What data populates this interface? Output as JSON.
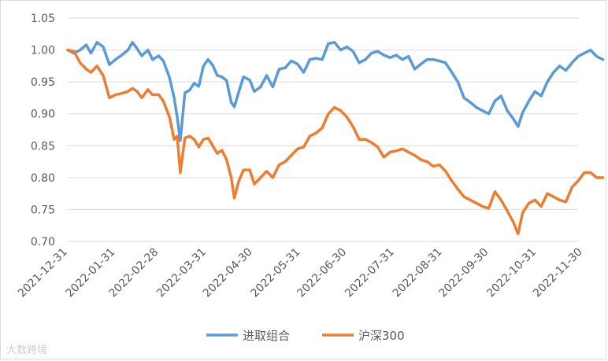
{
  "chart_data": {
    "type": "line",
    "title": "",
    "xlabel": "",
    "ylabel": "",
    "ylim": [
      0.7,
      1.05
    ],
    "yticks": [
      "1.05",
      "1.00",
      "0.95",
      "0.90",
      "0.85",
      "0.80",
      "0.75",
      "0.70"
    ],
    "x_ticks": [
      "2021-12-31",
      "2022-01-31",
      "2022-02-28",
      "2022-03-31",
      "2022-04-30",
      "2022-05-31",
      "2022-06-30",
      "2022-07-31",
      "2022-08-31",
      "2022-09-30",
      "2022-10-31",
      "2022-11-30"
    ],
    "grid": "horizontal",
    "legend_position": "bottom",
    "series": [
      {
        "name": "进取组合",
        "color": "#5b9bd5",
        "points": [
          [
            "2021-12-31",
            1.0
          ],
          [
            "2022-01-04",
            0.995
          ],
          [
            "2022-01-08",
            1.0
          ],
          [
            "2022-01-12",
            1.008
          ],
          [
            "2022-01-15",
            0.995
          ],
          [
            "2022-01-19",
            1.012
          ],
          [
            "2022-01-23",
            1.005
          ],
          [
            "2022-01-27",
            0.977
          ],
          [
            "2022-01-31",
            0.985
          ],
          [
            "2022-02-04",
            0.992
          ],
          [
            "2022-02-08",
            1.0
          ],
          [
            "2022-02-11",
            1.012
          ],
          [
            "2022-02-14",
            1.002
          ],
          [
            "2022-02-17",
            0.991
          ],
          [
            "2022-02-21",
            1.0
          ],
          [
            "2022-02-24",
            0.985
          ],
          [
            "2022-02-28",
            0.991
          ],
          [
            "2022-03-03",
            0.983
          ],
          [
            "2022-03-07",
            0.957
          ],
          [
            "2022-03-10",
            0.925
          ],
          [
            "2022-03-12",
            0.895
          ],
          [
            "2022-03-14",
            0.858
          ],
          [
            "2022-03-17",
            0.933
          ],
          [
            "2022-03-20",
            0.937
          ],
          [
            "2022-03-23",
            0.948
          ],
          [
            "2022-03-26",
            0.943
          ],
          [
            "2022-03-29",
            0.975
          ],
          [
            "2022-04-01",
            0.985
          ],
          [
            "2022-04-04",
            0.976
          ],
          [
            "2022-04-07",
            0.96
          ],
          [
            "2022-04-10",
            0.958
          ],
          [
            "2022-04-13",
            0.952
          ],
          [
            "2022-04-16",
            0.918
          ],
          [
            "2022-04-18",
            0.911
          ],
          [
            "2022-04-21",
            0.935
          ],
          [
            "2022-04-24",
            0.958
          ],
          [
            "2022-04-28",
            0.953
          ],
          [
            "2022-05-01",
            0.935
          ],
          [
            "2022-05-05",
            0.942
          ],
          [
            "2022-05-09",
            0.96
          ],
          [
            "2022-05-13",
            0.942
          ],
          [
            "2022-05-17",
            0.97
          ],
          [
            "2022-05-21",
            0.972
          ],
          [
            "2022-05-25",
            0.983
          ],
          [
            "2022-05-29",
            0.978
          ],
          [
            "2022-06-02",
            0.965
          ],
          [
            "2022-06-06",
            0.985
          ],
          [
            "2022-06-10",
            0.987
          ],
          [
            "2022-06-14",
            0.985
          ],
          [
            "2022-06-18",
            1.01
          ],
          [
            "2022-06-22",
            1.012
          ],
          [
            "2022-06-26",
            1.0
          ],
          [
            "2022-06-30",
            1.005
          ],
          [
            "2022-07-04",
            0.998
          ],
          [
            "2022-07-08",
            0.98
          ],
          [
            "2022-07-12",
            0.985
          ],
          [
            "2022-07-16",
            0.995
          ],
          [
            "2022-07-20",
            0.998
          ],
          [
            "2022-07-24",
            0.992
          ],
          [
            "2022-07-28",
            0.988
          ],
          [
            "2022-08-01",
            0.992
          ],
          [
            "2022-08-05",
            0.985
          ],
          [
            "2022-08-09",
            0.99
          ],
          [
            "2022-08-13",
            0.97
          ],
          [
            "2022-08-17",
            0.978
          ],
          [
            "2022-08-21",
            0.985
          ],
          [
            "2022-08-25",
            0.985
          ],
          [
            "2022-08-29",
            0.983
          ],
          [
            "2022-09-02",
            0.98
          ],
          [
            "2022-09-06",
            0.965
          ],
          [
            "2022-09-10",
            0.95
          ],
          [
            "2022-09-14",
            0.925
          ],
          [
            "2022-09-18",
            0.918
          ],
          [
            "2022-09-22",
            0.91
          ],
          [
            "2022-09-26",
            0.905
          ],
          [
            "2022-09-30",
            0.9
          ],
          [
            "2022-10-04",
            0.92
          ],
          [
            "2022-10-08",
            0.928
          ],
          [
            "2022-10-12",
            0.905
          ],
          [
            "2022-10-16",
            0.892
          ],
          [
            "2022-10-19",
            0.88
          ],
          [
            "2022-10-22",
            0.902
          ],
          [
            "2022-10-26",
            0.92
          ],
          [
            "2022-10-30",
            0.935
          ],
          [
            "2022-11-03",
            0.928
          ],
          [
            "2022-11-07",
            0.95
          ],
          [
            "2022-11-11",
            0.965
          ],
          [
            "2022-11-15",
            0.975
          ],
          [
            "2022-11-19",
            0.968
          ],
          [
            "2022-11-23",
            0.98
          ],
          [
            "2022-11-27",
            0.99
          ],
          [
            "2022-12-01",
            0.995
          ],
          [
            "2022-12-05",
            1.0
          ],
          [
            "2022-12-09",
            0.99
          ],
          [
            "2022-12-13",
            0.985
          ]
        ]
      },
      {
        "name": "沪深300",
        "color": "#ed7d31",
        "points": [
          [
            "2021-12-31",
            1.0
          ],
          [
            "2022-01-04",
            0.998
          ],
          [
            "2022-01-08",
            0.98
          ],
          [
            "2022-01-12",
            0.97
          ],
          [
            "2022-01-15",
            0.965
          ],
          [
            "2022-01-19",
            0.975
          ],
          [
            "2022-01-23",
            0.96
          ],
          [
            "2022-01-27",
            0.925
          ],
          [
            "2022-01-31",
            0.93
          ],
          [
            "2022-02-04",
            0.932
          ],
          [
            "2022-02-08",
            0.935
          ],
          [
            "2022-02-11",
            0.94
          ],
          [
            "2022-02-14",
            0.935
          ],
          [
            "2022-02-17",
            0.925
          ],
          [
            "2022-02-21",
            0.938
          ],
          [
            "2022-02-24",
            0.93
          ],
          [
            "2022-02-28",
            0.93
          ],
          [
            "2022-03-03",
            0.92
          ],
          [
            "2022-03-07",
            0.895
          ],
          [
            "2022-03-10",
            0.86
          ],
          [
            "2022-03-12",
            0.865
          ],
          [
            "2022-03-14",
            0.808
          ],
          [
            "2022-03-17",
            0.862
          ],
          [
            "2022-03-20",
            0.865
          ],
          [
            "2022-03-23",
            0.86
          ],
          [
            "2022-03-26",
            0.848
          ],
          [
            "2022-03-29",
            0.86
          ],
          [
            "2022-04-01",
            0.862
          ],
          [
            "2022-04-04",
            0.85
          ],
          [
            "2022-04-07",
            0.838
          ],
          [
            "2022-04-10",
            0.843
          ],
          [
            "2022-04-13",
            0.828
          ],
          [
            "2022-04-16",
            0.8
          ],
          [
            "2022-04-18",
            0.768
          ],
          [
            "2022-04-21",
            0.795
          ],
          [
            "2022-04-24",
            0.812
          ],
          [
            "2022-04-28",
            0.812
          ],
          [
            "2022-05-01",
            0.79
          ],
          [
            "2022-05-05",
            0.8
          ],
          [
            "2022-05-09",
            0.81
          ],
          [
            "2022-05-13",
            0.8
          ],
          [
            "2022-05-17",
            0.82
          ],
          [
            "2022-05-21",
            0.825
          ],
          [
            "2022-05-25",
            0.835
          ],
          [
            "2022-05-29",
            0.845
          ],
          [
            "2022-06-02",
            0.848
          ],
          [
            "2022-06-06",
            0.865
          ],
          [
            "2022-06-10",
            0.87
          ],
          [
            "2022-06-14",
            0.878
          ],
          [
            "2022-06-18",
            0.9
          ],
          [
            "2022-06-22",
            0.91
          ],
          [
            "2022-06-26",
            0.905
          ],
          [
            "2022-06-30",
            0.895
          ],
          [
            "2022-07-04",
            0.88
          ],
          [
            "2022-07-08",
            0.86
          ],
          [
            "2022-07-12",
            0.86
          ],
          [
            "2022-07-16",
            0.855
          ],
          [
            "2022-07-20",
            0.848
          ],
          [
            "2022-07-24",
            0.832
          ],
          [
            "2022-07-28",
            0.84
          ],
          [
            "2022-08-01",
            0.842
          ],
          [
            "2022-08-05",
            0.845
          ],
          [
            "2022-08-09",
            0.84
          ],
          [
            "2022-08-13",
            0.835
          ],
          [
            "2022-08-17",
            0.828
          ],
          [
            "2022-08-21",
            0.825
          ],
          [
            "2022-08-25",
            0.818
          ],
          [
            "2022-08-29",
            0.82
          ],
          [
            "2022-09-02",
            0.81
          ],
          [
            "2022-09-06",
            0.795
          ],
          [
            "2022-09-10",
            0.782
          ],
          [
            "2022-09-14",
            0.77
          ],
          [
            "2022-09-18",
            0.765
          ],
          [
            "2022-09-22",
            0.76
          ],
          [
            "2022-09-26",
            0.755
          ],
          [
            "2022-09-30",
            0.752
          ],
          [
            "2022-10-04",
            0.778
          ],
          [
            "2022-10-08",
            0.765
          ],
          [
            "2022-10-12",
            0.748
          ],
          [
            "2022-10-16",
            0.73
          ],
          [
            "2022-10-19",
            0.712
          ],
          [
            "2022-10-22",
            0.745
          ],
          [
            "2022-10-26",
            0.76
          ],
          [
            "2022-10-30",
            0.765
          ],
          [
            "2022-11-03",
            0.755
          ],
          [
            "2022-11-07",
            0.775
          ],
          [
            "2022-11-11",
            0.77
          ],
          [
            "2022-11-15",
            0.765
          ],
          [
            "2022-11-19",
            0.762
          ],
          [
            "2022-11-23",
            0.785
          ],
          [
            "2022-11-27",
            0.795
          ],
          [
            "2022-12-01",
            0.808
          ],
          [
            "2022-12-05",
            0.808
          ],
          [
            "2022-12-09",
            0.8
          ],
          [
            "2022-12-13",
            0.8
          ]
        ]
      }
    ]
  },
  "watermark": "大数跨境"
}
